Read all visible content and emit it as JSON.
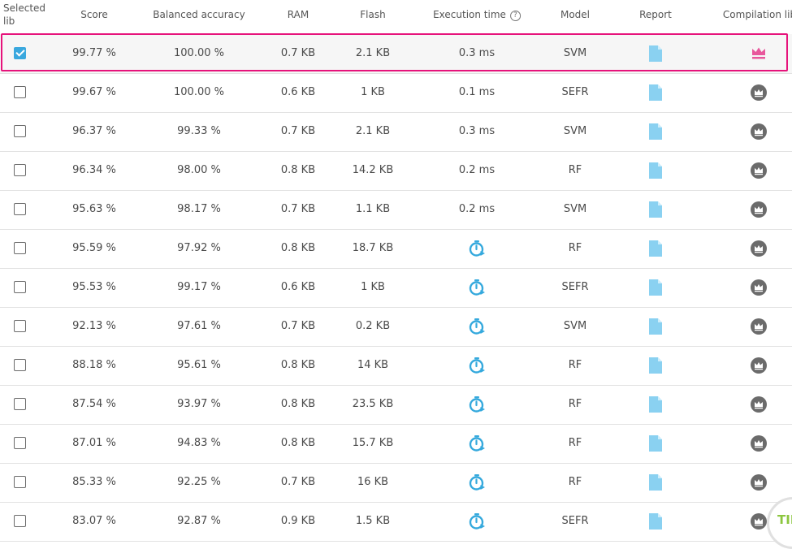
{
  "columns": {
    "selected": "Selected lib",
    "score": "Score",
    "balanced": "Balanced accuracy",
    "ram": "RAM",
    "flash": "Flash",
    "exec": "Execution time",
    "model": "Model",
    "report": "Report",
    "compilation": "Compilation lib"
  },
  "icons": {
    "help": "question-circle-icon",
    "report": "document-icon",
    "timer": "stopwatch-icon",
    "crown": "crown-icon",
    "crown_active": "crown-icon"
  },
  "colors": {
    "accent": "#3aa8de",
    "report_icon": "#8ad1f1",
    "timer_icon": "#35a9dd",
    "crown_active": "#e8579c",
    "crown_default": "#6b6b6b",
    "highlight_border": "#e6137b",
    "tip_text": "#8cc63f"
  },
  "rows": [
    {
      "selected": true,
      "score": "99.77 %",
      "balanced": "100.00 %",
      "ram": "0.7 KB",
      "flash": "2.1 KB",
      "exec": "0.3 ms",
      "model": "SVM"
    },
    {
      "selected": false,
      "score": "99.67 %",
      "balanced": "100.00 %",
      "ram": "0.6 KB",
      "flash": "1 KB",
      "exec": "0.1 ms",
      "model": "SEFR"
    },
    {
      "selected": false,
      "score": "96.37 %",
      "balanced": "99.33 %",
      "ram": "0.7 KB",
      "flash": "2.1 KB",
      "exec": "0.3 ms",
      "model": "SVM"
    },
    {
      "selected": false,
      "score": "96.34 %",
      "balanced": "98.00 %",
      "ram": "0.8 KB",
      "flash": "14.2 KB",
      "exec": "0.2 ms",
      "model": "RF"
    },
    {
      "selected": false,
      "score": "95.63 %",
      "balanced": "98.17 %",
      "ram": "0.7 KB",
      "flash": "1.1 KB",
      "exec": "0.2 ms",
      "model": "SVM"
    },
    {
      "selected": false,
      "score": "95.59 %",
      "balanced": "97.92 %",
      "ram": "0.8 KB",
      "flash": "18.7 KB",
      "exec": "",
      "model": "RF"
    },
    {
      "selected": false,
      "score": "95.53 %",
      "balanced": "99.17 %",
      "ram": "0.6 KB",
      "flash": "1 KB",
      "exec": "",
      "model": "SEFR"
    },
    {
      "selected": false,
      "score": "92.13 %",
      "balanced": "97.61 %",
      "ram": "0.7 KB",
      "flash": "0.2 KB",
      "exec": "",
      "model": "SVM"
    },
    {
      "selected": false,
      "score": "88.18 %",
      "balanced": "95.61 %",
      "ram": "0.8 KB",
      "flash": "14 KB",
      "exec": "",
      "model": "RF"
    },
    {
      "selected": false,
      "score": "87.54 %",
      "balanced": "93.97 %",
      "ram": "0.8 KB",
      "flash": "23.5 KB",
      "exec": "",
      "model": "RF"
    },
    {
      "selected": false,
      "score": "87.01 %",
      "balanced": "94.83 %",
      "ram": "0.8 KB",
      "flash": "15.7 KB",
      "exec": "",
      "model": "RF"
    },
    {
      "selected": false,
      "score": "85.33 %",
      "balanced": "92.25 %",
      "ram": "0.7 KB",
      "flash": "16 KB",
      "exec": "",
      "model": "RF"
    },
    {
      "selected": false,
      "score": "83.07 %",
      "balanced": "92.87 %",
      "ram": "0.9 KB",
      "flash": "1.5 KB",
      "exec": "",
      "model": "SEFR"
    }
  ],
  "tip_button": "TIP"
}
